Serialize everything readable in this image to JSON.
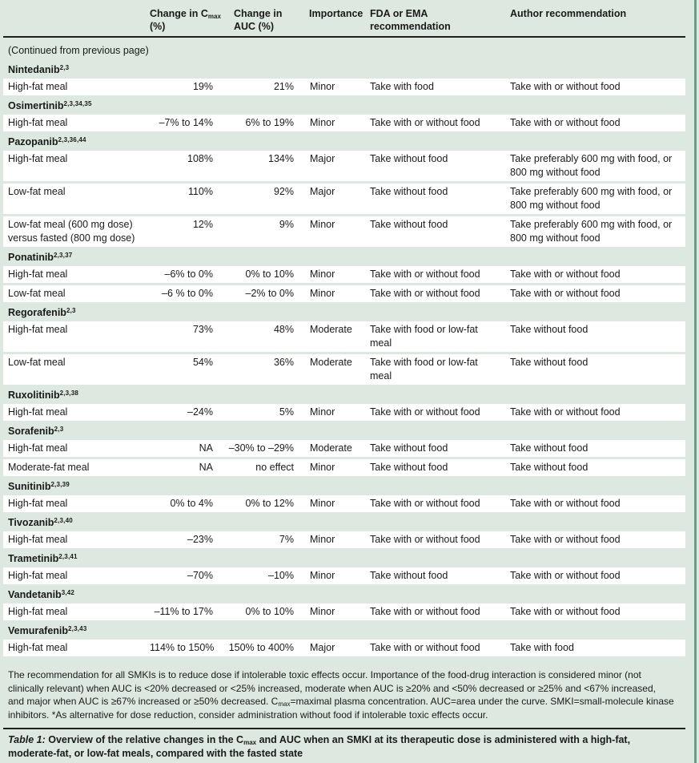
{
  "colors": {
    "bg": "#dde8e1",
    "row_white": "#ffffff",
    "rule_dark": "#1f1f1f",
    "edge_green": "#64a089",
    "text": "#1a1a1a"
  },
  "header": {
    "cmax_pre": "Change in C",
    "cmax_sub": "max",
    "cmax_line2": "(%)",
    "auc_line1": "Change in",
    "auc_line2": "AUC (%)",
    "importance": "Importance",
    "fda": "FDA or EMA recommendation",
    "author": "Author recommendation"
  },
  "continued_note": "(Continued from previous page)",
  "groups": [
    {
      "drug": "Nintedanib",
      "refs": "2,3",
      "rows": [
        {
          "meal": "High-fat meal",
          "cmax": "19%",
          "auc": "21%",
          "importance": "Minor",
          "fda": "Take with food",
          "author": "Take with or without food"
        }
      ]
    },
    {
      "drug": "Osimertinib",
      "refs": "2,3,34,35",
      "rows": [
        {
          "meal": "High-fat meal",
          "cmax": "–7% to 14%",
          "auc": "6% to 19%",
          "importance": "Minor",
          "fda": "Take with or without food",
          "author": "Take with or without food"
        }
      ]
    },
    {
      "drug": "Pazopanib",
      "refs": "2,3,36,44",
      "rows": [
        {
          "meal": "High-fat meal",
          "cmax": "108%",
          "auc": "134%",
          "importance": "Major",
          "fda": "Take without food",
          "author": "Take preferably 600 mg with food, or 800 mg without food"
        },
        {
          "meal": "Low-fat meal",
          "cmax": "110%",
          "auc": "92%",
          "importance": "Major",
          "fda": "Take without food",
          "author": "Take preferably 600 mg with food, or 800 mg without food"
        },
        {
          "meal": "Low-fat meal (600 mg dose) versus fasted (800 mg dose)",
          "cmax": "12%",
          "auc": "9%",
          "importance": "Minor",
          "fda": "Take without food",
          "author": "Take preferably 600 mg with food, or 800 mg without food"
        }
      ]
    },
    {
      "drug": "Ponatinib",
      "refs": "2,3,37",
      "rows": [
        {
          "meal": "High-fat meal",
          "cmax": "–6% to 0%",
          "auc": "0% to 10%",
          "importance": "Minor",
          "fda": "Take with or without food",
          "author": "Take with or without food"
        },
        {
          "meal": "Low-fat meal",
          "cmax": "–6 % to 0%",
          "auc": "–2% to 0%",
          "importance": "Minor",
          "fda": "Take with or without food",
          "author": "Take with or without food"
        }
      ]
    },
    {
      "drug": "Regorafenib",
      "refs": "2,3",
      "rows": [
        {
          "meal": "High-fat meal",
          "cmax": "73%",
          "auc": "48%",
          "importance": "Moderate",
          "fda": "Take with food or low-fat meal",
          "author": "Take without food"
        },
        {
          "meal": "Low-fat meal",
          "cmax": "54%",
          "auc": "36%",
          "importance": "Moderate",
          "fda": "Take with food or low-fat meal",
          "author": "Take without food"
        }
      ]
    },
    {
      "drug": "Ruxolitinib",
      "refs": "2,3,38",
      "rows": [
        {
          "meal": "High-fat meal",
          "cmax": "–24%",
          "auc": "5%",
          "importance": "Minor",
          "fda": "Take with or without food",
          "author": "Take with or without food"
        }
      ]
    },
    {
      "drug": "Sorafenib",
      "refs": "2,3",
      "rows": [
        {
          "meal": "High-fat meal",
          "cmax": "NA",
          "auc": "–30% to –29%",
          "importance": "Moderate",
          "fda": "Take without food",
          "author": "Take without food"
        },
        {
          "meal": "Moderate-fat meal",
          "cmax": "NA",
          "auc": "no effect",
          "importance": "Minor",
          "fda": "Take without food",
          "author": "Take without food"
        }
      ]
    },
    {
      "drug": "Sunitinib",
      "refs": "2,3,39",
      "rows": [
        {
          "meal": "High-fat meal",
          "cmax": "0% to 4%",
          "auc": "0% to 12%",
          "importance": "Minor",
          "fda": "Take with or without food",
          "author": "Take with or without food"
        }
      ]
    },
    {
      "drug": "Tivozanib",
      "refs": "2,3,40",
      "rows": [
        {
          "meal": "High-fat meal",
          "cmax": "–23%",
          "auc": "7%",
          "importance": "Minor",
          "fda": "Take with or without food",
          "author": "Take with or without food"
        }
      ]
    },
    {
      "drug": "Trametinib",
      "refs": "2,3,41",
      "rows": [
        {
          "meal": "High-fat meal",
          "cmax": "–70%",
          "auc": "–10%",
          "importance": "Minor",
          "fda": "Take without food",
          "author": "Take with or without food"
        }
      ]
    },
    {
      "drug": "Vandetanib",
      "refs": "3,42",
      "rows": [
        {
          "meal": "High-fat meal",
          "cmax": "–11% to 17%",
          "auc": "0% to 10%",
          "importance": "Minor",
          "fda": "Take with or without food",
          "author": "Take with or without food"
        }
      ]
    },
    {
      "drug": "Vemurafenib",
      "refs": "2,3,43",
      "rows": [
        {
          "meal": "High-fat meal",
          "cmax": "114% to 150%",
          "auc": "150% to 400%",
          "importance": "Major",
          "fda": "Take with or without food",
          "author": "Take with food"
        }
      ]
    }
  ],
  "footnote": {
    "part1": "The recommendation for all SMKIs is to reduce dose if intolerable toxic effects occur. Importance of the food-drug interaction is considered minor (not clinically relevant) when AUC is <20% decreased or <25% increased, moderate when AUC is ≥20% and <50% decreased or ≥25% and <67% increased, and major when AUC is ≥67% increased or ≥50% decreased. C",
    "sub": "max",
    "part2": "=maximal plasma concentration. AUC=area under the curve. SMKI=small-molecule kinase inhibitors. *As alternative for dose reduction, consider administration without food if intolerable toxic effects occur."
  },
  "caption": {
    "label": "Table 1:",
    "pre": " Overview of the relative changes in the C",
    "sub": "max",
    "post": " and AUC when an SMKI at its therapeutic dose is administered with a high-fat, moderate-fat, or low-fat meals, compared with the fasted state"
  }
}
